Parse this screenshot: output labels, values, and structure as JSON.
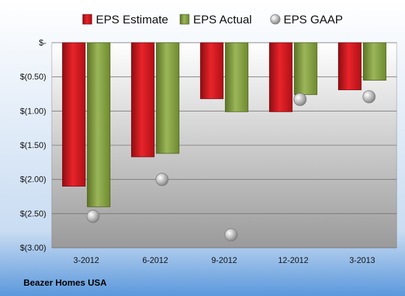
{
  "chart_data": {
    "type": "bar",
    "categories": [
      "3-2012",
      "6-2012",
      "9-2012",
      "12-2012",
      "3-2013"
    ],
    "series": [
      {
        "name": "EPS Estimate",
        "kind": "bar",
        "color": "#c0141a",
        "values": [
          -2.1,
          -1.67,
          -0.82,
          -1.01,
          -0.69
        ]
      },
      {
        "name": "EPS Actual",
        "kind": "bar",
        "color": "#7f9a3a",
        "values": [
          -2.4,
          -1.62,
          -1.01,
          -0.76,
          -0.55
        ]
      },
      {
        "name": "EPS GAAP",
        "kind": "scatter",
        "color": "#a8a8a8",
        "values": [
          -2.54,
          -2.0,
          -2.81,
          -0.83,
          -0.79
        ]
      }
    ],
    "yticks": [
      "$-",
      "$(0.50)",
      "$(1.00)",
      "$(1.50)",
      "$(2.00)",
      "$(2.50)",
      "$(3.00)"
    ],
    "ylim": [
      -3.0,
      0
    ],
    "grid": true,
    "legend": "top-center",
    "footer": "Beazer Homes USA",
    "colors": {
      "page_background_top": "#ffffff",
      "page_background_bottom": "#5b98dc",
      "plot_background_top": "#ffffff",
      "plot_background_bottom": "#9a9a9a"
    }
  }
}
